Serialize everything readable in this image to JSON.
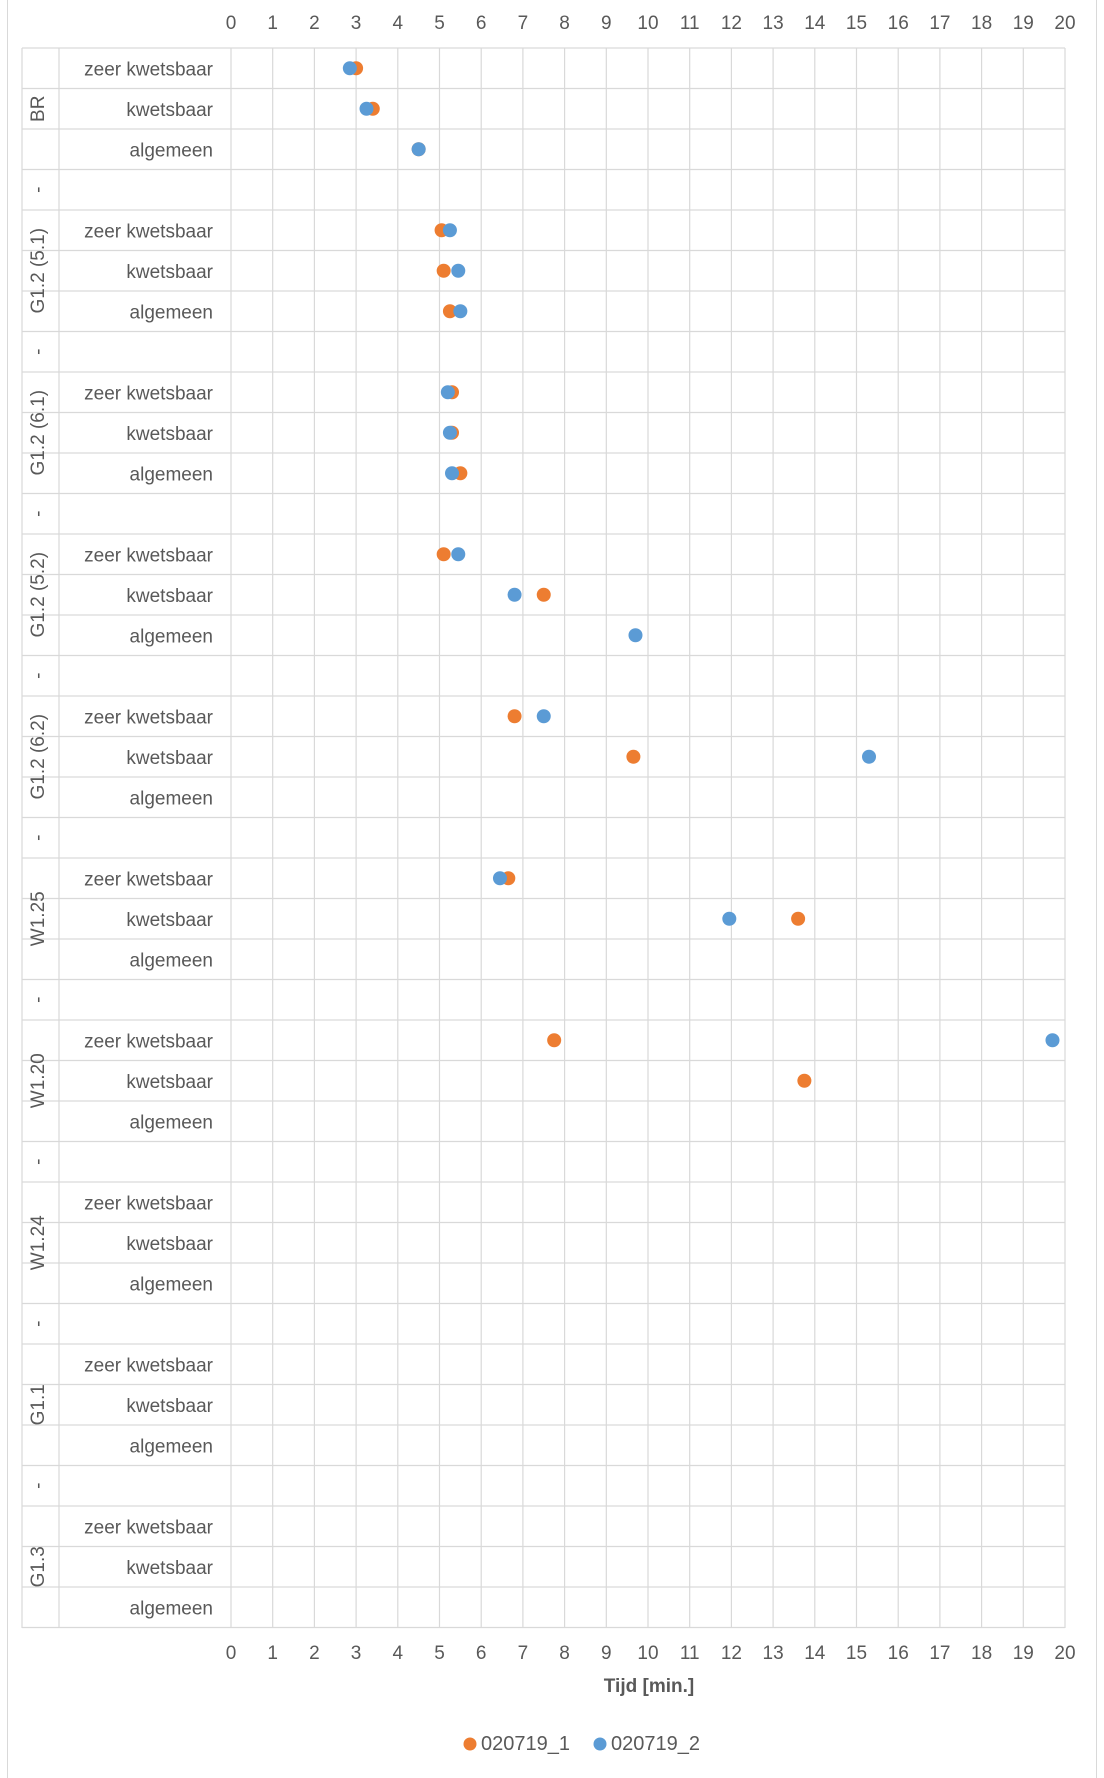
{
  "chart_data": {
    "type": "scatter",
    "xlabel": "Tijd [min.]",
    "ylabel": "",
    "xlim": [
      0,
      20
    ],
    "x_ticks": [
      0,
      1,
      2,
      3,
      4,
      5,
      6,
      7,
      8,
      9,
      10,
      11,
      12,
      13,
      14,
      15,
      16,
      17,
      18,
      19,
      20
    ],
    "grid": true,
    "legend_position": "bottom",
    "groups": [
      {
        "label": "BR",
        "categories": [
          "zeer kwetsbaar",
          "kwetsbaar",
          "algemeen"
        ]
      },
      {
        "label": "G1.2 (5.1)",
        "categories": [
          "zeer kwetsbaar",
          "kwetsbaar",
          "algemeen"
        ]
      },
      {
        "label": "G1.2 (6.1)",
        "categories": [
          "zeer kwetsbaar",
          "kwetsbaar",
          "algemeen"
        ]
      },
      {
        "label": "G1.2 (5.2)",
        "categories": [
          "zeer kwetsbaar",
          "kwetsbaar",
          "algemeen"
        ]
      },
      {
        "label": "G1.2 (6.2)",
        "categories": [
          "zeer kwetsbaar",
          "kwetsbaar",
          "algemeen"
        ]
      },
      {
        "label": "W1.25",
        "categories": [
          "zeer kwetsbaar",
          "kwetsbaar",
          "algemeen"
        ]
      },
      {
        "label": "W1.20",
        "categories": [
          "zeer kwetsbaar",
          "kwetsbaar",
          "algemeen"
        ]
      },
      {
        "label": "W1.24",
        "categories": [
          "zeer kwetsbaar",
          "kwetsbaar",
          "algemeen"
        ]
      },
      {
        "label": "G1.1",
        "categories": [
          "zeer kwetsbaar",
          "kwetsbaar",
          "algemeen"
        ]
      },
      {
        "label": "G1.3",
        "categories": [
          "zeer kwetsbaar",
          "kwetsbaar",
          "algemeen"
        ]
      }
    ],
    "separator_label": "-",
    "series": [
      {
        "name": "020719_1",
        "color": "#ed7d31",
        "points": [
          {
            "group": 0,
            "cat": 0,
            "x": 3.0
          },
          {
            "group": 0,
            "cat": 1,
            "x": 3.4
          },
          {
            "group": 0,
            "cat": 2,
            "x": 4.5
          },
          {
            "group": 1,
            "cat": 0,
            "x": 5.05
          },
          {
            "group": 1,
            "cat": 1,
            "x": 5.1
          },
          {
            "group": 1,
            "cat": 2,
            "x": 5.25
          },
          {
            "group": 2,
            "cat": 0,
            "x": 5.3
          },
          {
            "group": 2,
            "cat": 1,
            "x": 5.3
          },
          {
            "group": 2,
            "cat": 2,
            "x": 5.5
          },
          {
            "group": 3,
            "cat": 0,
            "x": 5.1
          },
          {
            "group": 3,
            "cat": 1,
            "x": 7.5
          },
          {
            "group": 4,
            "cat": 0,
            "x": 6.8
          },
          {
            "group": 4,
            "cat": 1,
            "x": 9.65
          },
          {
            "group": 5,
            "cat": 0,
            "x": 6.65
          },
          {
            "group": 5,
            "cat": 1,
            "x": 13.6
          },
          {
            "group": 6,
            "cat": 0,
            "x": 7.75
          },
          {
            "group": 6,
            "cat": 1,
            "x": 13.75
          }
        ]
      },
      {
        "name": "020719_2",
        "color": "#5b9bd5",
        "points": [
          {
            "group": 0,
            "cat": 0,
            "x": 2.85
          },
          {
            "group": 0,
            "cat": 1,
            "x": 3.25
          },
          {
            "group": 0,
            "cat": 2,
            "x": 4.5
          },
          {
            "group": 1,
            "cat": 0,
            "x": 5.25
          },
          {
            "group": 1,
            "cat": 1,
            "x": 5.45
          },
          {
            "group": 1,
            "cat": 2,
            "x": 5.5
          },
          {
            "group": 2,
            "cat": 0,
            "x": 5.2
          },
          {
            "group": 2,
            "cat": 1,
            "x": 5.25
          },
          {
            "group": 2,
            "cat": 2,
            "x": 5.3
          },
          {
            "group": 3,
            "cat": 0,
            "x": 5.45
          },
          {
            "group": 3,
            "cat": 1,
            "x": 6.8
          },
          {
            "group": 3,
            "cat": 2,
            "x": 9.7
          },
          {
            "group": 4,
            "cat": 0,
            "x": 7.5
          },
          {
            "group": 4,
            "cat": 1,
            "x": 15.3
          },
          {
            "group": 5,
            "cat": 0,
            "x": 6.45
          },
          {
            "group": 5,
            "cat": 1,
            "x": 11.95
          },
          {
            "group": 6,
            "cat": 0,
            "x": 19.7
          }
        ]
      }
    ]
  }
}
